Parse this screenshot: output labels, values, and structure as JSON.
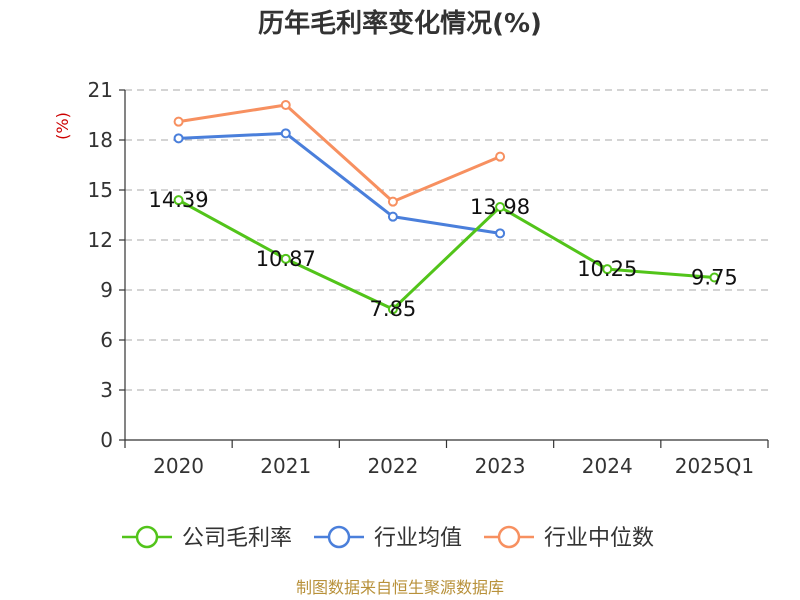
{
  "chart_data": {
    "type": "line",
    "title": "历年毛利率变化情况(%)",
    "unit_label": "(%)",
    "categories": [
      "2020",
      "2021",
      "2022",
      "2023",
      "2024",
      "2025Q1"
    ],
    "ylim": [
      0,
      21
    ],
    "yticks": [
      "0",
      "3",
      "6",
      "9",
      "12",
      "15",
      "18",
      "21"
    ],
    "grid": true,
    "legend_position": "bottom",
    "series": [
      {
        "name": "公司毛利率",
        "color": "#52c41a",
        "values": [
          14.39,
          10.87,
          7.85,
          13.98,
          10.25,
          9.75
        ],
        "labels": [
          "14.39",
          "10.87",
          "7.85",
          "13.98",
          "10.25",
          "9.75"
        ]
      },
      {
        "name": "行业均值",
        "color": "#4a7fdb",
        "values": [
          18.1,
          18.4,
          13.4,
          12.4,
          null,
          null
        ]
      },
      {
        "name": "行业中位数",
        "color": "#f79060",
        "values": [
          19.1,
          20.1,
          14.3,
          17.0,
          null,
          null
        ]
      }
    ],
    "source": "制图数据来自恒生聚源数据库"
  }
}
